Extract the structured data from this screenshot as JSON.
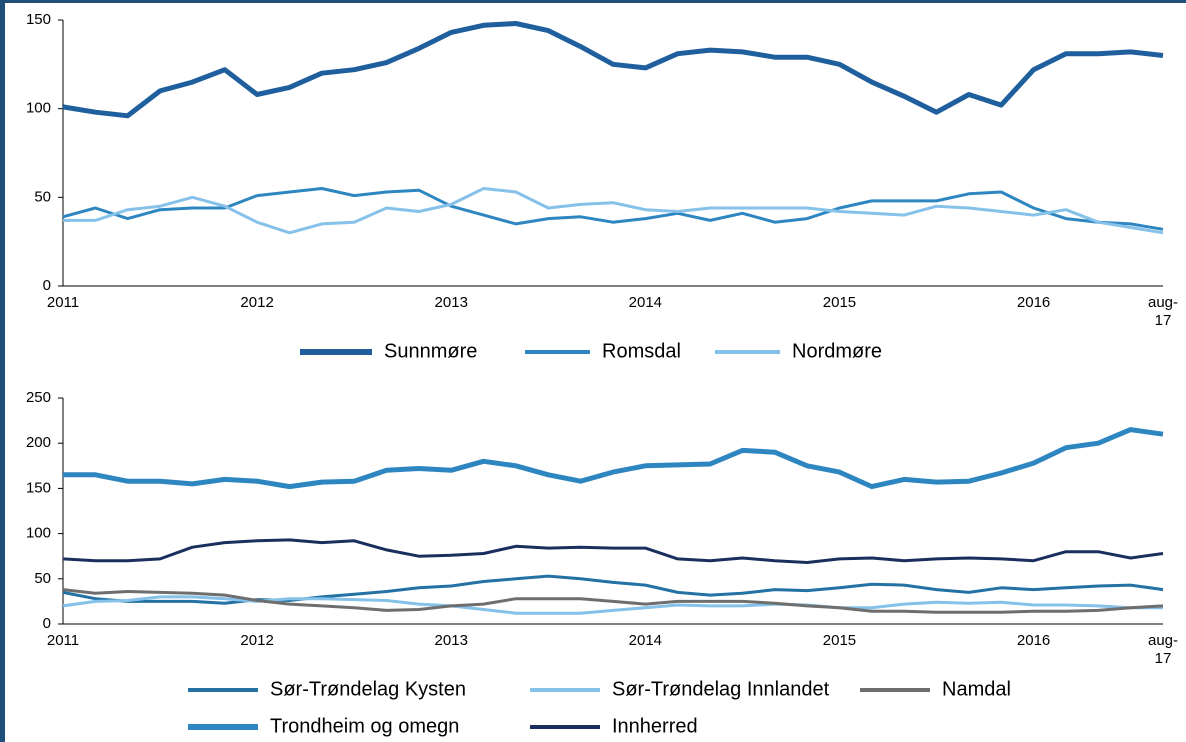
{
  "chart_data": [
    {
      "type": "line",
      "categories": [
        "2011",
        null,
        null,
        null,
        null,
        null,
        "2012",
        null,
        null,
        null,
        null,
        null,
        "2013",
        null,
        null,
        null,
        null,
        null,
        "2014",
        null,
        null,
        null,
        null,
        null,
        "2015",
        null,
        null,
        null,
        null,
        null,
        "2016",
        null,
        null,
        null,
        "aug-17"
      ],
      "ylim": [
        0,
        150
      ],
      "yticks": [
        0,
        50,
        100,
        150
      ],
      "series": [
        {
          "name": "Sunnmøre",
          "color": "#1f5f9e",
          "line_width": 5,
          "values": [
            101,
            98,
            96,
            110,
            115,
            122,
            108,
            112,
            120,
            122,
            126,
            134,
            143,
            147,
            148,
            144,
            135,
            125,
            123,
            131,
            133,
            132,
            129,
            129,
            125,
            115,
            107,
            98,
            108,
            102,
            122,
            131,
            131,
            132,
            130
          ]
        },
        {
          "name": "Romsdal",
          "color": "#2e86c1",
          "line_width": 3,
          "values": [
            39,
            44,
            38,
            43,
            44,
            44,
            51,
            53,
            55,
            51,
            53,
            54,
            45,
            40,
            35,
            38,
            39,
            36,
            38,
            41,
            37,
            41,
            36,
            38,
            44,
            48,
            48,
            48,
            52,
            53,
            44,
            38,
            36,
            35,
            32
          ]
        },
        {
          "name": "Nordmøre",
          "color": "#85c1e9",
          "line_width": 3,
          "values": [
            37,
            37,
            43,
            45,
            50,
            45,
            36,
            30,
            35,
            36,
            44,
            42,
            46,
            55,
            53,
            44,
            46,
            47,
            43,
            42,
            44,
            44,
            44,
            44,
            42,
            41,
            40,
            45,
            44,
            42,
            40,
            43,
            36,
            33,
            30
          ]
        }
      ]
    },
    {
      "type": "line",
      "categories": [
        "2011",
        null,
        null,
        null,
        null,
        null,
        "2012",
        null,
        null,
        null,
        null,
        null,
        "2013",
        null,
        null,
        null,
        null,
        null,
        "2014",
        null,
        null,
        null,
        null,
        null,
        "2015",
        null,
        null,
        null,
        null,
        null,
        "2016",
        null,
        null,
        null,
        "aug-17"
      ],
      "ylim": [
        0,
        250
      ],
      "yticks": [
        0,
        50,
        100,
        150,
        200,
        250
      ],
      "series": [
        {
          "name": "Sør-Trøndelag Kysten",
          "color": "#2471a3",
          "line_width": 3,
          "values": [
            35,
            28,
            25,
            25,
            25,
            23,
            27,
            26,
            30,
            33,
            36,
            40,
            42,
            47,
            50,
            53,
            50,
            46,
            43,
            35,
            32,
            34,
            38,
            37,
            40,
            44,
            43,
            38,
            35,
            40,
            38,
            40,
            42,
            43,
            38
          ]
        },
        {
          "name": "Sør-Trøndelag Innlandet",
          "color": "#85c1e9",
          "line_width": 3,
          "values": [
            20,
            25,
            26,
            30,
            30,
            28,
            25,
            28,
            28,
            27,
            26,
            22,
            20,
            16,
            12,
            12,
            12,
            15,
            18,
            21,
            20,
            20,
            22,
            21,
            18,
            18,
            22,
            24,
            23,
            24,
            21,
            21,
            20,
            18,
            18
          ]
        },
        {
          "name": "Namdal",
          "color": "#6e6e6e",
          "line_width": 3,
          "values": [
            38,
            34,
            36,
            35,
            34,
            32,
            26,
            22,
            20,
            18,
            15,
            16,
            20,
            22,
            28,
            28,
            28,
            25,
            22,
            25,
            25,
            25,
            23,
            20,
            18,
            14,
            14,
            13,
            13,
            13,
            14,
            14,
            15,
            18,
            20
          ]
        },
        {
          "name": "Trondheim og omegn",
          "color": "#2e86c1",
          "line_width": 5,
          "values": [
            165,
            165,
            158,
            158,
            155,
            160,
            158,
            152,
            157,
            158,
            170,
            172,
            170,
            180,
            175,
            165,
            158,
            168,
            175,
            176,
            177,
            192,
            190,
            175,
            168,
            152,
            160,
            157,
            158,
            167,
            178,
            195,
            200,
            215,
            210
          ]
        },
        {
          "name": "Innherred",
          "color": "#1a2f5e",
          "line_width": 3,
          "values": [
            72,
            70,
            70,
            72,
            85,
            90,
            92,
            93,
            90,
            92,
            82,
            75,
            76,
            78,
            86,
            84,
            85,
            84,
            84,
            72,
            70,
            73,
            70,
            68,
            72,
            73,
            70,
            72,
            73,
            72,
            70,
            80,
            80,
            73,
            78
          ]
        }
      ]
    }
  ]
}
